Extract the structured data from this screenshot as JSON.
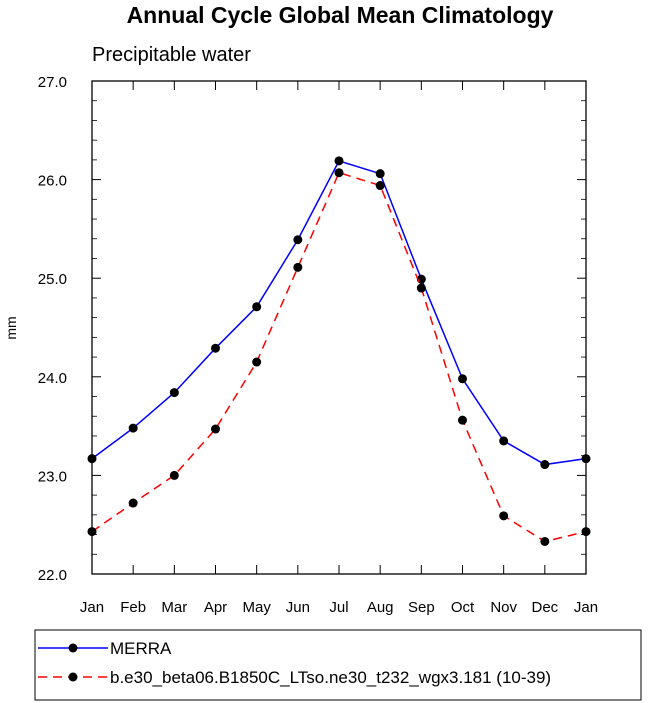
{
  "chart_data": {
    "type": "line",
    "title": "Annual Cycle Global Mean Climatology",
    "subtitle": "Precipitable water",
    "xlabel": "",
    "ylabel": "mm",
    "categories": [
      "Jan",
      "Feb",
      "Mar",
      "Apr",
      "May",
      "Jun",
      "Jul",
      "Aug",
      "Sep",
      "Oct",
      "Nov",
      "Dec",
      "Jan"
    ],
    "ylim": [
      22.0,
      27.0
    ],
    "yticks": [
      "22.0",
      "23.0",
      "24.0",
      "25.0",
      "26.0",
      "27.0"
    ],
    "grid": false,
    "legend_position": "bottom",
    "series": [
      {
        "name": "MERRA",
        "color": "#0000ff",
        "dash": "solid",
        "values": [
          23.17,
          23.48,
          23.84,
          24.29,
          24.71,
          25.39,
          26.19,
          26.06,
          24.99,
          23.98,
          23.35,
          23.11,
          23.17
        ]
      },
      {
        "name": "b.e30_beta06.B1850C_LTso.ne30_t232_wgx3.181 (10-39)",
        "color": "#ff0000",
        "dash": "dashed",
        "values": [
          22.43,
          22.72,
          23.0,
          23.47,
          24.15,
          25.11,
          26.07,
          25.94,
          24.9,
          23.56,
          22.59,
          22.33,
          22.43
        ]
      }
    ]
  }
}
